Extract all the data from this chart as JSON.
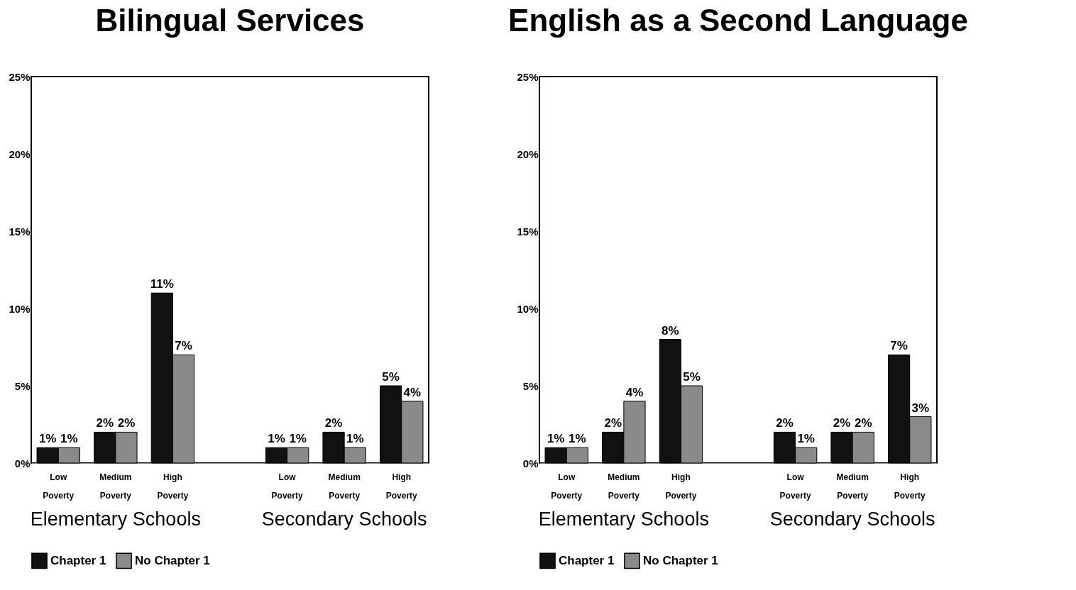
{
  "chart_data": [
    {
      "type": "bar",
      "title": "Bilingual Services",
      "categories": [
        "Low Poverty",
        "Medium Poverty",
        "High Poverty",
        null,
        "Low Poverty",
        "Medium Poverty",
        "High Poverty"
      ],
      "series": [
        {
          "name": "Chapter 1",
          "color": "#111111",
          "values": [
            1,
            2,
            11,
            null,
            1,
            2,
            5
          ],
          "value_labels": [
            "1%",
            "2%",
            "11%",
            null,
            "1%",
            "2%",
            "5%"
          ]
        },
        {
          "name": "No Chapter 1",
          "color": "#8a8a8a",
          "values": [
            1,
            2,
            7,
            null,
            1,
            1,
            4
          ],
          "value_labels": [
            "1%",
            "2%",
            "7%",
            null,
            "1%",
            "1%",
            "4%"
          ]
        }
      ],
      "annotations": [
        "Elementary Schools",
        "Secondary Schools"
      ],
      "ylim": [
        0,
        25
      ],
      "yticks": [
        {
          "value": 0,
          "label": "0%"
        },
        {
          "value": 5,
          "label": "5%"
        },
        {
          "value": 10,
          "label": "10%"
        },
        {
          "value": 15,
          "label": "15%"
        },
        {
          "value": 20,
          "label": "20%"
        },
        {
          "value": 25,
          "label": "25%"
        }
      ],
      "legend": "bottom"
    },
    {
      "type": "bar",
      "title": "English as a Second Language",
      "categories": [
        "Low Poverty",
        "Medium Poverty",
        "High Poverty",
        null,
        "Low Poverty",
        "Medium Poverty",
        "High Poverty"
      ],
      "series": [
        {
          "name": "Chapter 1",
          "color": "#111111",
          "values": [
            1,
            2,
            8,
            null,
            2,
            2,
            7
          ],
          "value_labels": [
            "1%",
            "2%",
            "8%",
            null,
            "2%",
            "2%",
            "7%"
          ]
        },
        {
          "name": "No Chapter 1",
          "color": "#8a8a8a",
          "values": [
            1,
            4,
            5,
            null,
            1,
            2,
            3
          ],
          "value_labels": [
            "1%",
            "4%",
            "5%",
            null,
            "1%",
            "2%",
            "3%"
          ]
        }
      ],
      "annotations": [
        "Elementary Schools",
        "Secondary Schools"
      ],
      "ylim": [
        0,
        25
      ],
      "yticks": [
        {
          "value": 0,
          "label": "0%"
        },
        {
          "value": 5,
          "label": "5%"
        },
        {
          "value": 10,
          "label": "10%"
        },
        {
          "value": 15,
          "label": "15%"
        },
        {
          "value": 20,
          "label": "20%"
        },
        {
          "value": 25,
          "label": "25%"
        }
      ],
      "legend": "bottom"
    }
  ]
}
